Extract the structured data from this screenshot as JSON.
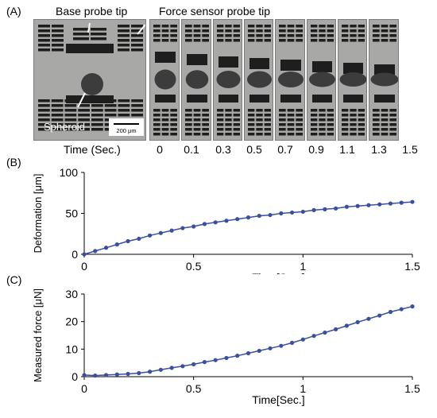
{
  "panel_a": {
    "letter": "(A)",
    "base_probe_label": "Base probe tip",
    "force_probe_label": "Force sensor probe tip",
    "spheroid_label": "Spheroid",
    "scale_bar_label": "200 μm",
    "time_axis_label": "Time (Sec.)",
    "time_points": [
      "0",
      "0.1",
      "0.3",
      "0.5",
      "0.7",
      "0.9",
      "1.1",
      "1.3",
      "1.5"
    ]
  },
  "panel_b": {
    "letter": "(B)"
  },
  "panel_c": {
    "letter": "(C)"
  },
  "colors": {
    "series": "#3a4fa0",
    "axis": "#000000",
    "photo_bg": "#a8a8a6",
    "electrode": "#1e1e1e"
  },
  "chart_data": [
    {
      "type": "scatter",
      "xlabel": "Time[Sec.]",
      "ylabel": "Deformation [μm]",
      "xlim": [
        0,
        1.5
      ],
      "ylim": [
        0,
        100
      ],
      "xticks": [
        "0",
        "0.5",
        "1",
        "1.5"
      ],
      "yticks": [
        "0",
        "50",
        "100"
      ],
      "grid": false,
      "x": [
        0,
        0.05,
        0.1,
        0.15,
        0.2,
        0.25,
        0.3,
        0.35,
        0.4,
        0.45,
        0.5,
        0.55,
        0.6,
        0.65,
        0.7,
        0.75,
        0.8,
        0.85,
        0.9,
        0.95,
        1.0,
        1.05,
        1.1,
        1.15,
        1.2,
        1.25,
        1.3,
        1.35,
        1.4,
        1.45,
        1.5
      ],
      "y": [
        0,
        4,
        8,
        12,
        16,
        19,
        23,
        26,
        29,
        32,
        34,
        37,
        39,
        41,
        43,
        45,
        47,
        48,
        50,
        51,
        52,
        54,
        55,
        56,
        58,
        59,
        60,
        61,
        62,
        63,
        64
      ]
    },
    {
      "type": "scatter",
      "xlabel": "Time[Sec.]",
      "ylabel": "Measured force [μN]",
      "xlim": [
        0,
        1.5
      ],
      "ylim": [
        0,
        30
      ],
      "xticks": [
        "0",
        "0.5",
        "1",
        "1.5"
      ],
      "yticks": [
        "0",
        "10",
        "20",
        "30"
      ],
      "grid": false,
      "x": [
        0,
        0.05,
        0.1,
        0.15,
        0.2,
        0.25,
        0.3,
        0.35,
        0.4,
        0.45,
        0.5,
        0.55,
        0.6,
        0.65,
        0.7,
        0.75,
        0.8,
        0.85,
        0.9,
        0.95,
        1.0,
        1.05,
        1.1,
        1.15,
        1.2,
        1.25,
        1.3,
        1.35,
        1.4,
        1.45,
        1.5
      ],
      "y": [
        0.6,
        0.4,
        0.6,
        0.8,
        1.0,
        1.3,
        1.8,
        2.5,
        3.2,
        3.8,
        4.5,
        5.3,
        6.0,
        6.8,
        7.6,
        8.5,
        9.4,
        10.3,
        11.2,
        12.3,
        13.5,
        14.8,
        16.0,
        17.2,
        18.5,
        19.8,
        21.0,
        22.2,
        23.5,
        24.5,
        25.5
      ]
    }
  ]
}
